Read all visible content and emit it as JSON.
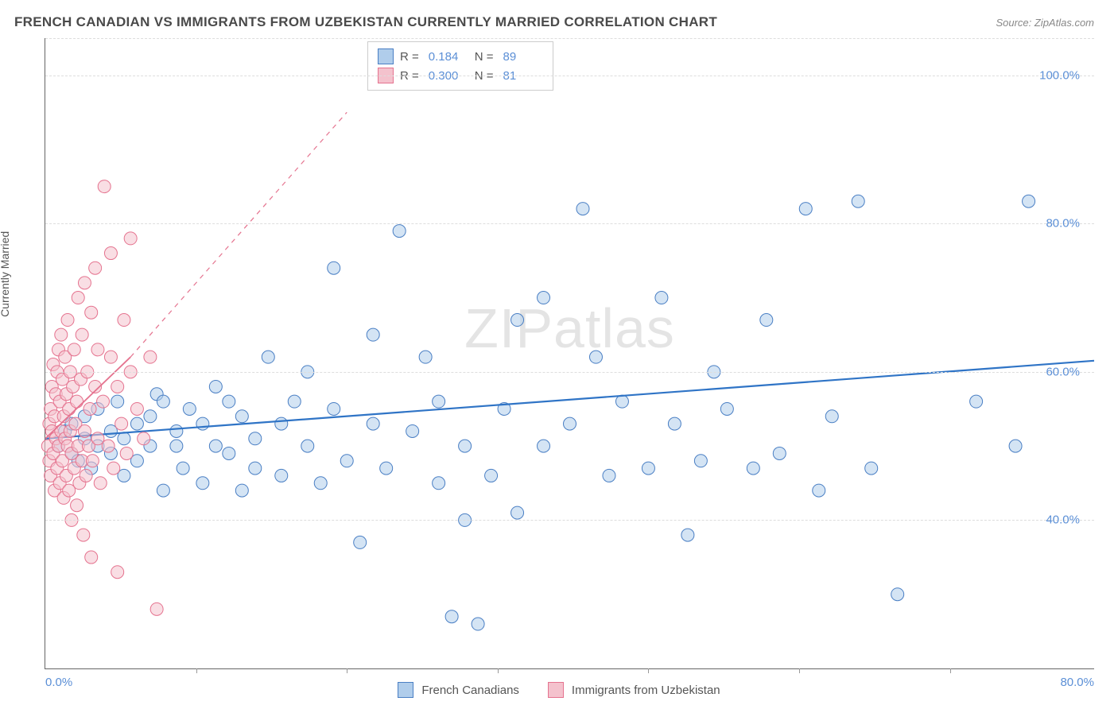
{
  "header": {
    "title": "FRENCH CANADIAN VS IMMIGRANTS FROM UZBEKISTAN CURRENTLY MARRIED CORRELATION CHART",
    "source": "Source: ZipAtlas.com"
  },
  "chart": {
    "type": "scatter",
    "ylabel": "Currently Married",
    "watermark": "ZIPatlas",
    "xlim": [
      0,
      80
    ],
    "ylim": [
      20,
      105
    ],
    "xticks": [
      0,
      20,
      40,
      60,
      80
    ],
    "xtick_labels": [
      "0.0%",
      "",
      "",
      "",
      "80.0%"
    ],
    "xtick_marks": [
      11.5,
      23,
      34.5,
      46,
      57.5,
      69
    ],
    "yticks": [
      40,
      60,
      80,
      100
    ],
    "ytick_labels": [
      "40.0%",
      "60.0%",
      "80.0%",
      "100.0%"
    ],
    "ygrid": [
      40,
      60,
      80,
      100,
      105
    ],
    "grid_color": "#dddddd",
    "axis_color": "#666666",
    "tick_label_color": "#5b8fd6",
    "background_color": "#ffffff",
    "marker_radius": 8,
    "marker_opacity": 0.55,
    "stats": [
      {
        "swatch": "blue",
        "r_label": "R =",
        "r_value": "0.184",
        "n_label": "N =",
        "n_value": "89"
      },
      {
        "swatch": "pink",
        "r_label": "R =",
        "r_value": "0.300",
        "n_label": "N =",
        "n_value": "81"
      }
    ],
    "legend": [
      {
        "swatch": "blue",
        "label": "French Canadians"
      },
      {
        "swatch": "pink",
        "label": "Immigrants from Uzbekistan"
      }
    ],
    "series": [
      {
        "name": "french_canadians",
        "fill": "#b0cdeb",
        "stroke": "#4a7fc4",
        "trend": {
          "solid": [
            [
              0,
              51
            ],
            [
              80,
              61.5
            ]
          ],
          "color": "#2f74c6",
          "width": 2.2
        },
        "points": [
          [
            1,
            50
          ],
          [
            1.5,
            52
          ],
          [
            2,
            49
          ],
          [
            2,
            53
          ],
          [
            2.5,
            48
          ],
          [
            3,
            51
          ],
          [
            3,
            54
          ],
          [
            3.5,
            47
          ],
          [
            4,
            50
          ],
          [
            4,
            55
          ],
          [
            5,
            49
          ],
          [
            5,
            52
          ],
          [
            5.5,
            56
          ],
          [
            6,
            46
          ],
          [
            6,
            51
          ],
          [
            7,
            48
          ],
          [
            7,
            53
          ],
          [
            8,
            50
          ],
          [
            8,
            54
          ],
          [
            8.5,
            57
          ],
          [
            9,
            44
          ],
          [
            9,
            56
          ],
          [
            10,
            50
          ],
          [
            10,
            52
          ],
          [
            10.5,
            47
          ],
          [
            11,
            55
          ],
          [
            12,
            45
          ],
          [
            12,
            53
          ],
          [
            13,
            50
          ],
          [
            13,
            58
          ],
          [
            14,
            49
          ],
          [
            14,
            56
          ],
          [
            15,
            44
          ],
          [
            15,
            54
          ],
          [
            16,
            51
          ],
          [
            16,
            47
          ],
          [
            17,
            62
          ],
          [
            18,
            53
          ],
          [
            18,
            46
          ],
          [
            19,
            56
          ],
          [
            20,
            50
          ],
          [
            20,
            60
          ],
          [
            21,
            45
          ],
          [
            22,
            55
          ],
          [
            22,
            74
          ],
          [
            23,
            48
          ],
          [
            24,
            37
          ],
          [
            25,
            53
          ],
          [
            25,
            65
          ],
          [
            26,
            47
          ],
          [
            27,
            79
          ],
          [
            28,
            52
          ],
          [
            29,
            62
          ],
          [
            30,
            45
          ],
          [
            30,
            56
          ],
          [
            31,
            27
          ],
          [
            32,
            50
          ],
          [
            32,
            40
          ],
          [
            33,
            26
          ],
          [
            34,
            46
          ],
          [
            35,
            55
          ],
          [
            36,
            67
          ],
          [
            36,
            41
          ],
          [
            38,
            50
          ],
          [
            38,
            70
          ],
          [
            40,
            53
          ],
          [
            41,
            82
          ],
          [
            42,
            62
          ],
          [
            43,
            46
          ],
          [
            44,
            56
          ],
          [
            46,
            47
          ],
          [
            47,
            70
          ],
          [
            48,
            53
          ],
          [
            49,
            38
          ],
          [
            50,
            48
          ],
          [
            51,
            60
          ],
          [
            52,
            55
          ],
          [
            54,
            47
          ],
          [
            55,
            67
          ],
          [
            56,
            49
          ],
          [
            58,
            82
          ],
          [
            59,
            44
          ],
          [
            60,
            54
          ],
          [
            62,
            83
          ],
          [
            63,
            47
          ],
          [
            65,
            30
          ],
          [
            71,
            56
          ],
          [
            74,
            50
          ],
          [
            75,
            83
          ]
        ]
      },
      {
        "name": "immigrants_uzbekistan",
        "fill": "#f4c2cd",
        "stroke": "#e5738f",
        "trend": {
          "solid": [
            [
              0,
              51
            ],
            [
              6.5,
              62
            ]
          ],
          "dashed": [
            [
              6.5,
              62
            ],
            [
              23,
              95
            ]
          ],
          "color": "#e5738f",
          "width": 1.8
        },
        "points": [
          [
            0.2,
            50
          ],
          [
            0.3,
            53
          ],
          [
            0.3,
            48
          ],
          [
            0.4,
            55
          ],
          [
            0.4,
            46
          ],
          [
            0.5,
            52
          ],
          [
            0.5,
            58
          ],
          [
            0.6,
            49
          ],
          [
            0.6,
            61
          ],
          [
            0.7,
            44
          ],
          [
            0.7,
            54
          ],
          [
            0.8,
            51
          ],
          [
            0.8,
            57
          ],
          [
            0.9,
            47
          ],
          [
            0.9,
            60
          ],
          [
            1.0,
            50
          ],
          [
            1.0,
            63
          ],
          [
            1.1,
            45
          ],
          [
            1.1,
            56
          ],
          [
            1.2,
            52
          ],
          [
            1.2,
            65
          ],
          [
            1.3,
            48
          ],
          [
            1.3,
            59
          ],
          [
            1.4,
            43
          ],
          [
            1.4,
            54
          ],
          [
            1.5,
            51
          ],
          [
            1.5,
            62
          ],
          [
            1.6,
            46
          ],
          [
            1.6,
            57
          ],
          [
            1.7,
            50
          ],
          [
            1.7,
            67
          ],
          [
            1.8,
            44
          ],
          [
            1.8,
            55
          ],
          [
            1.9,
            52
          ],
          [
            1.9,
            60
          ],
          [
            2.0,
            40
          ],
          [
            2.0,
            49
          ],
          [
            2.1,
            58
          ],
          [
            2.2,
            47
          ],
          [
            2.2,
            63
          ],
          [
            2.3,
            53
          ],
          [
            2.4,
            42
          ],
          [
            2.4,
            56
          ],
          [
            2.5,
            50
          ],
          [
            2.5,
            70
          ],
          [
            2.6,
            45
          ],
          [
            2.7,
            59
          ],
          [
            2.8,
            48
          ],
          [
            2.8,
            65
          ],
          [
            2.9,
            38
          ],
          [
            3.0,
            52
          ],
          [
            3.0,
            72
          ],
          [
            3.1,
            46
          ],
          [
            3.2,
            60
          ],
          [
            3.3,
            50
          ],
          [
            3.4,
            55
          ],
          [
            3.5,
            35
          ],
          [
            3.5,
            68
          ],
          [
            3.6,
            48
          ],
          [
            3.8,
            58
          ],
          [
            3.8,
            74
          ],
          [
            4.0,
            51
          ],
          [
            4.0,
            63
          ],
          [
            4.2,
            45
          ],
          [
            4.4,
            56
          ],
          [
            4.5,
            85
          ],
          [
            4.8,
            50
          ],
          [
            5.0,
            62
          ],
          [
            5.0,
            76
          ],
          [
            5.2,
            47
          ],
          [
            5.5,
            58
          ],
          [
            5.5,
            33
          ],
          [
            5.8,
            53
          ],
          [
            6.0,
            67
          ],
          [
            6.2,
            49
          ],
          [
            6.5,
            60
          ],
          [
            6.5,
            78
          ],
          [
            7.0,
            55
          ],
          [
            7.5,
            51
          ],
          [
            8.0,
            62
          ],
          [
            8.5,
            28
          ]
        ]
      }
    ]
  }
}
